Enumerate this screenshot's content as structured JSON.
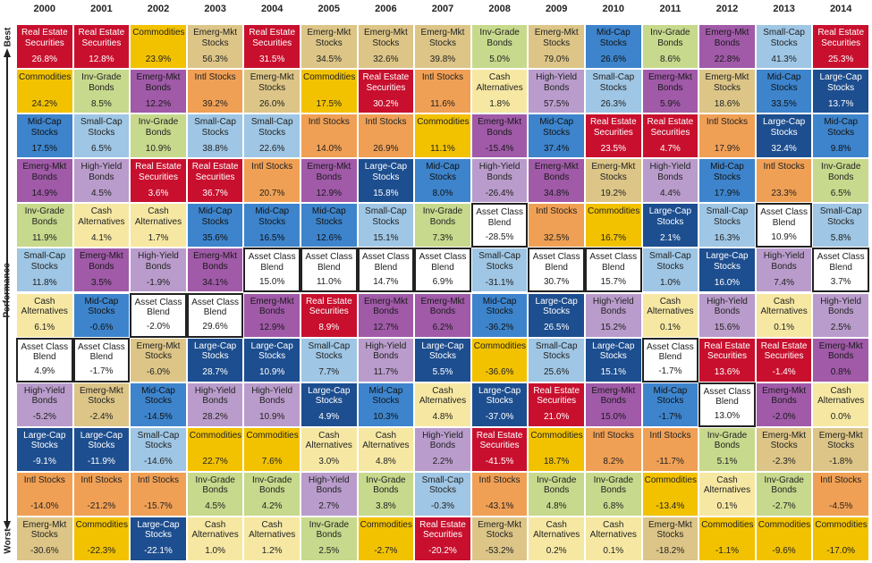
{
  "axis": {
    "best": "Best",
    "label": "Performance",
    "worst": "Worst"
  },
  "colors": {
    "Real Estate Securities": {
      "fill": "#c8102e",
      "text": "#ffffff"
    },
    "Commodities": {
      "fill": "#f2c200",
      "text": "#222222"
    },
    "Emerg-Mkt Stocks": {
      "fill": "#dcc587",
      "text": "#222222"
    },
    "Emerg-Mkt Bonds": {
      "fill": "#a05aa8",
      "text": "#1a1a1a"
    },
    "Intl Stocks": {
      "fill": "#f0a055",
      "text": "#222222"
    },
    "Inv-Grade Bonds": {
      "fill": "#c7d98c",
      "text": "#222222"
    },
    "Mid-Cap Stocks": {
      "fill": "#3d84cc",
      "text": "#111111"
    },
    "Small-Cap Stocks": {
      "fill": "#9fc6e4",
      "text": "#222222"
    },
    "High-Yield Bonds": {
      "fill": "#b99ccb",
      "text": "#222222"
    },
    "Cash Alternatives": {
      "fill": "#f6e8a3",
      "text": "#222222"
    },
    "Asset Class Blend": {
      "fill": "#ffffff",
      "text": "#222222"
    },
    "Large-Cap Stocks": {
      "fill": "#1d4e8f",
      "text": "#ffffff"
    }
  },
  "table": {
    "columns": [
      {
        "year": "2000",
        "cells": [
          [
            "Real Estate Securities",
            "26.8%"
          ],
          [
            "Commodities",
            "24.2%"
          ],
          [
            "Mid-Cap Stocks",
            "17.5%"
          ],
          [
            "Emerg-Mkt Bonds",
            "14.9%"
          ],
          [
            "Inv-Grade Bonds",
            "11.9%"
          ],
          [
            "Small-Cap Stocks",
            "11.8%"
          ],
          [
            "Cash Alternatives",
            "6.1%"
          ],
          [
            "Asset Class Blend",
            "4.9%"
          ],
          [
            "High-Yield Bonds",
            "-5.2%"
          ],
          [
            "Large-Cap Stocks",
            "-9.1%"
          ],
          [
            "Intl Stocks",
            "-14.0%"
          ],
          [
            "Emerg-Mkt Stocks",
            "-30.6%"
          ]
        ]
      },
      {
        "year": "2001",
        "cells": [
          [
            "Real Estate Securities",
            "12.8%"
          ],
          [
            "Inv-Grade Bonds",
            "8.5%"
          ],
          [
            "Small-Cap Stocks",
            "6.5%"
          ],
          [
            "High-Yield Bonds",
            "4.5%"
          ],
          [
            "Cash Alternatives",
            "4.1%"
          ],
          [
            "Emerg-Mkt Bonds",
            "3.5%"
          ],
          [
            "Mid-Cap Stocks",
            "-0.6%"
          ],
          [
            "Asset Class Blend",
            "-1.7%"
          ],
          [
            "Emerg-Mkt Stocks",
            "-2.4%"
          ],
          [
            "Large-Cap Stocks",
            "-11.9%"
          ],
          [
            "Intl Stocks",
            "-21.2%"
          ],
          [
            "Commodities",
            "-22.3%"
          ]
        ]
      },
      {
        "year": "2002",
        "cells": [
          [
            "Commodities",
            "23.9%"
          ],
          [
            "Emerg-Mkt Bonds",
            "12.2%"
          ],
          [
            "Inv-Grade Bonds",
            "10.9%"
          ],
          [
            "Real Estate Securities",
            "3.6%"
          ],
          [
            "Cash Alternatives",
            "1.7%"
          ],
          [
            "High-Yield Bonds",
            "-1.9%"
          ],
          [
            "Asset Class Blend",
            "-2.0%"
          ],
          [
            "Emerg-Mkt Stocks",
            "-6.0%"
          ],
          [
            "Mid-Cap Stocks",
            "-14.5%"
          ],
          [
            "Small-Cap Stocks",
            "-14.6%"
          ],
          [
            "Intl Stocks",
            "-15.7%"
          ],
          [
            "Large-Cap Stocks",
            "-22.1%"
          ]
        ]
      },
      {
        "year": "2003",
        "cells": [
          [
            "Emerg-Mkt Stocks",
            "56.3%"
          ],
          [
            "Intl Stocks",
            "39.2%"
          ],
          [
            "Small-Cap Stocks",
            "38.8%"
          ],
          [
            "Real Estate Securities",
            "36.7%"
          ],
          [
            "Mid-Cap Stocks",
            "35.6%"
          ],
          [
            "Emerg-Mkt Bonds",
            "34.1%"
          ],
          [
            "Asset Class Blend",
            "29.6%"
          ],
          [
            "Large-Cap Stocks",
            "28.7%"
          ],
          [
            "High-Yield Bonds",
            "28.2%"
          ],
          [
            "Commodities",
            "22.7%"
          ],
          [
            "Inv-Grade Bonds",
            "4.5%"
          ],
          [
            "Cash Alternatives",
            "1.0%"
          ]
        ]
      },
      {
        "year": "2004",
        "cells": [
          [
            "Real Estate Securities",
            "31.5%"
          ],
          [
            "Emerg-Mkt Stocks",
            "26.0%"
          ],
          [
            "Small-Cap Stocks",
            "22.6%"
          ],
          [
            "Intl Stocks",
            "20.7%"
          ],
          [
            "Mid-Cap Stocks",
            "16.5%"
          ],
          [
            "Asset Class Blend",
            "15.0%"
          ],
          [
            "Emerg-Mkt Bonds",
            "12.9%"
          ],
          [
            "Large-Cap Stocks",
            "10.9%"
          ],
          [
            "High-Yield Bonds",
            "10.9%"
          ],
          [
            "Commodities",
            "7.6%"
          ],
          [
            "Inv-Grade Bonds",
            "4.2%"
          ],
          [
            "Cash Alternatives",
            "1.2%"
          ]
        ]
      },
      {
        "year": "2005",
        "cells": [
          [
            "Emerg-Mkt Stocks",
            "34.5%"
          ],
          [
            "Commodities",
            "17.5%"
          ],
          [
            "Intl Stocks",
            "14.0%"
          ],
          [
            "Emerg-Mkt Bonds",
            "12.9%"
          ],
          [
            "Mid-Cap Stocks",
            "12.6%"
          ],
          [
            "Asset Class Blend",
            "11.0%"
          ],
          [
            "Real Estate Securities",
            "8.9%"
          ],
          [
            "Small-Cap Stocks",
            "7.7%"
          ],
          [
            "Large-Cap Stocks",
            "4.9%"
          ],
          [
            "Cash Alternatives",
            "3.0%"
          ],
          [
            "High-Yield Bonds",
            "2.7%"
          ],
          [
            "Inv-Grade Bonds",
            "2.5%"
          ]
        ]
      },
      {
        "year": "2006",
        "cells": [
          [
            "Emerg-Mkt Stocks",
            "32.6%"
          ],
          [
            "Real Estate Securities",
            "30.2%"
          ],
          [
            "Intl Stocks",
            "26.9%"
          ],
          [
            "Large-Cap Stocks",
            "15.8%"
          ],
          [
            "Small-Cap Stocks",
            "15.1%"
          ],
          [
            "Asset Class Blend",
            "14.7%"
          ],
          [
            "Emerg-Mkt Bonds",
            "12.7%"
          ],
          [
            "High-Yield Bonds",
            "11.7%"
          ],
          [
            "Mid-Cap Stocks",
            "10.3%"
          ],
          [
            "Cash Alternatives",
            "4.8%"
          ],
          [
            "Inv-Grade Bonds",
            "3.8%"
          ],
          [
            "Commodities",
            "-2.7%"
          ]
        ]
      },
      {
        "year": "2007",
        "cells": [
          [
            "Emerg-Mkt Stocks",
            "39.8%"
          ],
          [
            "Intl Stocks",
            "11.6%"
          ],
          [
            "Commodities",
            "11.1%"
          ],
          [
            "Mid-Cap Stocks",
            "8.0%"
          ],
          [
            "Inv-Grade Bonds",
            "7.3%"
          ],
          [
            "Asset Class Blend",
            "6.9%"
          ],
          [
            "Emerg-Mkt Bonds",
            "6.2%"
          ],
          [
            "Large-Cap Stocks",
            "5.5%"
          ],
          [
            "Cash Alternatives",
            "4.8%"
          ],
          [
            "High-Yield Bonds",
            "2.2%"
          ],
          [
            "Small-Cap Stocks",
            "-0.3%"
          ],
          [
            "Real Estate Securities",
            "-20.2%"
          ]
        ]
      },
      {
        "year": "2008",
        "cells": [
          [
            "Inv-Grade Bonds",
            "5.0%"
          ],
          [
            "Cash Alternatives",
            "1.8%"
          ],
          [
            "Emerg-Mkt Bonds",
            "-15.4%"
          ],
          [
            "High-Yield Bonds",
            "-26.4%"
          ],
          [
            "Asset Class Blend",
            "-28.5%"
          ],
          [
            "Small-Cap Stocks",
            "-31.1%"
          ],
          [
            "Mid-Cap Stocks",
            "-36.2%"
          ],
          [
            "Commodities",
            "-36.6%"
          ],
          [
            "Large-Cap Stocks",
            "-37.0%"
          ],
          [
            "Real Estate Securities",
            "-41.5%"
          ],
          [
            "Intl Stocks",
            "-43.1%"
          ],
          [
            "Emerg-Mkt Stocks",
            "-53.2%"
          ]
        ]
      },
      {
        "year": "2009",
        "cells": [
          [
            "Emerg-Mkt Stocks",
            "79.0%"
          ],
          [
            "High-Yield Bonds",
            "57.5%"
          ],
          [
            "Mid-Cap Stocks",
            "37.4%"
          ],
          [
            "Emerg-Mkt Bonds",
            "34.8%"
          ],
          [
            "Intl Stocks",
            "32.5%"
          ],
          [
            "Asset Class Blend",
            "30.7%"
          ],
          [
            "Large-Cap Stocks",
            "26.5%"
          ],
          [
            "Small-Cap Stocks",
            "25.6%"
          ],
          [
            "Real Estate Securities",
            "21.0%"
          ],
          [
            "Commodities",
            "18.7%"
          ],
          [
            "Inv-Grade Bonds",
            "4.8%"
          ],
          [
            "Cash Alternatives",
            "0.2%"
          ]
        ]
      },
      {
        "year": "2010",
        "cells": [
          [
            "Mid-Cap Stocks",
            "26.6%"
          ],
          [
            "Small-Cap Stocks",
            "26.3%"
          ],
          [
            "Real Estate Securities",
            "23.5%"
          ],
          [
            "Emerg-Mkt Stocks",
            "19.2%"
          ],
          [
            "Commodities",
            "16.7%"
          ],
          [
            "Asset Class Blend",
            "15.7%"
          ],
          [
            "High-Yield Bonds",
            "15.2%"
          ],
          [
            "Large-Cap Stocks",
            "15.1%"
          ],
          [
            "Emerg-Mkt Bonds",
            "15.0%"
          ],
          [
            "Intl Stocks",
            "8.2%"
          ],
          [
            "Inv-Grade Bonds",
            "6.8%"
          ],
          [
            "Cash Alternatives",
            "0.1%"
          ]
        ]
      },
      {
        "year": "2011",
        "cells": [
          [
            "Inv-Grade Bonds",
            "8.6%"
          ],
          [
            "Emerg-Mkt Bonds",
            "5.9%"
          ],
          [
            "Real Estate Securities",
            "4.7%"
          ],
          [
            "High-Yield Bonds",
            "4.4%"
          ],
          [
            "Large-Cap Stocks",
            "2.1%"
          ],
          [
            "Small-Cap Stocks",
            "1.0%"
          ],
          [
            "Cash Alternatives",
            "0.1%"
          ],
          [
            "Asset Class Blend",
            "-1.7%"
          ],
          [
            "Mid-Cap Stocks",
            "-1.7%"
          ],
          [
            "Intl Stocks",
            "-11.7%"
          ],
          [
            "Commodities",
            "-13.4%"
          ],
          [
            "Emerg-Mkt Stocks",
            "-18.2%"
          ]
        ]
      },
      {
        "year": "2012",
        "cells": [
          [
            "Emerg-Mkt Bonds",
            "22.8%"
          ],
          [
            "Emerg-Mkt Stocks",
            "18.6%"
          ],
          [
            "Intl Stocks",
            "17.9%"
          ],
          [
            "Mid-Cap Stocks",
            "17.9%"
          ],
          [
            "Small-Cap Stocks",
            "16.3%"
          ],
          [
            "Large-Cap Stocks",
            "16.0%"
          ],
          [
            "High-Yield Bonds",
            "15.6%"
          ],
          [
            "Real Estate Securities",
            "13.6%"
          ],
          [
            "Asset Class Blend",
            "13.0%"
          ],
          [
            "Inv-Grade Bonds",
            "5.1%"
          ],
          [
            "Cash Alternatives",
            "0.1%"
          ],
          [
            "Commodities",
            "-1.1%"
          ]
        ]
      },
      {
        "year": "2013",
        "cells": [
          [
            "Small-Cap Stocks",
            "41.3%"
          ],
          [
            "Mid-Cap Stocks",
            "33.5%"
          ],
          [
            "Large-Cap Stocks",
            "32.4%"
          ],
          [
            "Intl Stocks",
            "23.3%"
          ],
          [
            "Asset Class Blend",
            "10.9%"
          ],
          [
            "High-Yield Bonds",
            "7.4%"
          ],
          [
            "Cash Alternatives",
            "0.1%"
          ],
          [
            "Real Estate Securities",
            "-1.4%"
          ],
          [
            "Emerg-Mkt Bonds",
            "-2.0%"
          ],
          [
            "Emerg-Mkt Stocks",
            "-2.3%"
          ],
          [
            "Inv-Grade Bonds",
            "-2.7%"
          ],
          [
            "Commodities",
            "-9.6%"
          ]
        ]
      },
      {
        "year": "2014",
        "cells": [
          [
            "Real Estate Securities",
            "25.3%"
          ],
          [
            "Large-Cap Stocks",
            "13.7%"
          ],
          [
            "Mid-Cap Stocks",
            "9.8%"
          ],
          [
            "Inv-Grade Bonds",
            "6.5%"
          ],
          [
            "Small-Cap Stocks",
            "5.8%"
          ],
          [
            "Asset Class Blend",
            "3.7%"
          ],
          [
            "High-Yield Bonds",
            "2.5%"
          ],
          [
            "Emerg-Mkt Bonds",
            "0.8%"
          ],
          [
            "Cash Alternatives",
            "0.0%"
          ],
          [
            "Emerg-Mkt Stocks",
            "-1.8%"
          ],
          [
            "Intl Stocks",
            "-4.5%"
          ],
          [
            "Commodities",
            "-17.0%"
          ]
        ]
      }
    ]
  }
}
